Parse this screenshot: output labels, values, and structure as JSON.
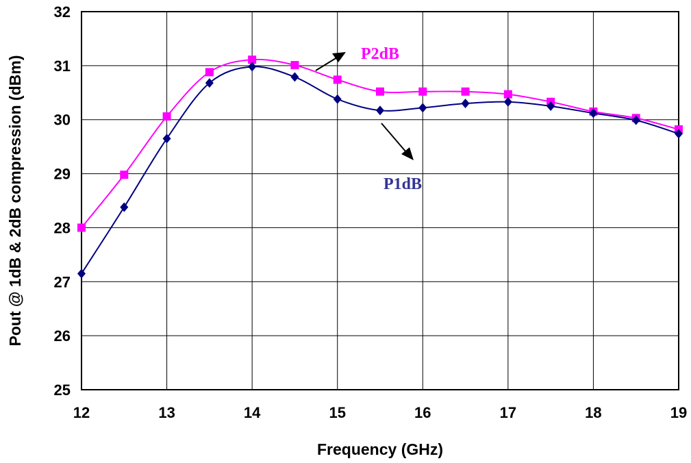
{
  "chart_data": {
    "type": "line",
    "title": "",
    "xlabel": "Frequency (GHz)",
    "ylabel": "Pout @ 1dB & 2dB compression (dBm)",
    "xlim": [
      12,
      19
    ],
    "ylim": [
      25,
      32
    ],
    "xticks": [
      "12",
      "13",
      "14",
      "15",
      "16",
      "17",
      "18",
      "19"
    ],
    "yticks": [
      "25",
      "26",
      "27",
      "28",
      "29",
      "30",
      "31",
      "32"
    ],
    "grid": true,
    "legend": "none",
    "series": [
      {
        "name": "P2dB",
        "color": "#ff00ff",
        "marker": "square",
        "x": [
          12,
          12.5,
          13,
          13.5,
          14,
          14.5,
          15,
          15.5,
          16,
          16.5,
          17,
          17.5,
          18,
          18.5,
          19
        ],
        "y": [
          28.0,
          28.98,
          30.06,
          30.88,
          31.11,
          31.01,
          30.74,
          30.52,
          30.52,
          30.52,
          30.47,
          30.33,
          30.15,
          30.03,
          29.82
        ]
      },
      {
        "name": "P1dB",
        "color": "#000080",
        "marker": "diamond",
        "x": [
          12,
          12.5,
          13,
          13.5,
          14,
          14.5,
          15,
          15.5,
          16,
          16.5,
          17,
          17.5,
          18,
          18.5,
          19
        ],
        "y": [
          27.15,
          28.38,
          29.65,
          30.68,
          30.98,
          30.79,
          30.38,
          30.17,
          30.22,
          30.3,
          30.33,
          30.25,
          30.12,
          29.99,
          29.74
        ]
      }
    ],
    "annotations": [
      {
        "text": "P2dB",
        "color": "#ff00ff"
      },
      {
        "text": "P1dB",
        "color": "#333399"
      }
    ]
  }
}
